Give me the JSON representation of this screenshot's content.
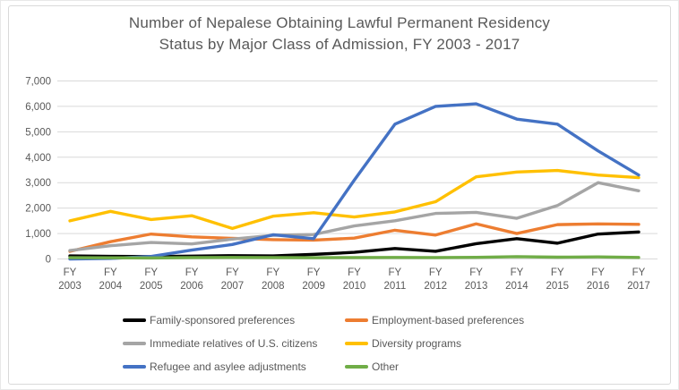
{
  "title": {
    "line1": "Number of Nepalese Obtaining Lawful Permanent Residency",
    "line2": "Status by Major Class of Admission, FY 2003 - 2017"
  },
  "colors": {
    "text": "#595959",
    "grid": "#d9d9d9",
    "frame_border": "#d9d9d9",
    "background": "#ffffff"
  },
  "chart_data": {
    "type": "line",
    "title": "Number of Nepalese Obtaining Lawful Permanent Residency Status by Major Class of Admission, FY 2003 - 2017",
    "categories": [
      "FY 2003",
      "FY 2004",
      "FY 2005",
      "FY 2006",
      "FY 2007",
      "FY 2008",
      "FY 2009",
      "FY 2010",
      "FY 2011",
      "FY 2012",
      "FY 2013",
      "FY 2014",
      "FY 2015",
      "FY 2016",
      "FY 2017"
    ],
    "y_axis": {
      "min": 0,
      "max": 7000,
      "tick_interval": 1000,
      "tick_labels": [
        "0",
        "1,000",
        "2,000",
        "3,000",
        "4,000",
        "5,000",
        "6,000",
        "7,000"
      ]
    },
    "grid": true,
    "legend_position": "bottom",
    "series": [
      {
        "name": "Family-sponsored preferences",
        "color": "#000000",
        "values": [
          120,
          105,
          95,
          110,
          130,
          120,
          180,
          260,
          410,
          300,
          600,
          800,
          620,
          980,
          1060
        ]
      },
      {
        "name": "Employment-based preferences",
        "color": "#ED7D31",
        "values": [
          300,
          680,
          980,
          870,
          810,
          760,
          740,
          820,
          1130,
          940,
          1380,
          1000,
          1350,
          1380,
          1360
        ]
      },
      {
        "name": "Immediate relatives of U.S. citizens",
        "color": "#A5A5A5",
        "values": [
          330,
          520,
          650,
          590,
          780,
          930,
          960,
          1300,
          1500,
          1790,
          1830,
          1600,
          2100,
          3000,
          2680
        ]
      },
      {
        "name": "Diversity programs",
        "color": "#FFC000",
        "values": [
          1500,
          1870,
          1550,
          1700,
          1200,
          1680,
          1820,
          1650,
          1850,
          2250,
          3230,
          3420,
          3480,
          3300,
          3200
        ]
      },
      {
        "name": "Refugee and asylee adjustments",
        "color": "#4472C4",
        "values": [
          0,
          20,
          100,
          350,
          570,
          950,
          800,
          3100,
          5300,
          6000,
          6100,
          5500,
          5300,
          4250,
          3300
        ]
      },
      {
        "name": "Other",
        "color": "#70AD47",
        "values": [
          50,
          45,
          40,
          55,
          60,
          55,
          50,
          55,
          60,
          55,
          65,
          90,
          70,
          80,
          60
        ]
      }
    ]
  }
}
